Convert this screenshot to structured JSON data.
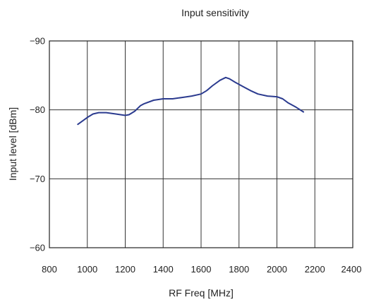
{
  "chart_data": {
    "type": "line",
    "title": "Input sensitivity",
    "xlabel": "RF Freq [MHz]",
    "ylabel": "Input level [dBm]",
    "xlim": [
      800,
      2400
    ],
    "ylim": [
      -60,
      -90
    ],
    "y_axis_inverted": true,
    "xticks": [
      800,
      1000,
      1200,
      1400,
      1600,
      1800,
      2000,
      2200,
      2400
    ],
    "xtick_labels": [
      "800",
      "1000",
      "1200",
      "1400",
      "1600",
      "1800",
      "2000",
      "2200",
      "2400"
    ],
    "yticks": [
      -90,
      -80,
      -70,
      -60
    ],
    "ytick_labels": [
      "−90",
      "−80",
      "−70",
      "−60"
    ],
    "grid": true,
    "series": [
      {
        "color": "#2b3b8f",
        "x": [
          950,
          970,
          1000,
          1030,
          1060,
          1100,
          1150,
          1200,
          1220,
          1250,
          1280,
          1300,
          1350,
          1400,
          1450,
          1500,
          1550,
          1600,
          1630,
          1660,
          1700,
          1730,
          1750,
          1780,
          1820,
          1860,
          1900,
          1950,
          2000,
          2030,
          2060,
          2100,
          2140
        ],
        "y": [
          -77.9,
          -78.3,
          -78.9,
          -79.4,
          -79.6,
          -79.6,
          -79.4,
          -79.2,
          -79.3,
          -79.8,
          -80.6,
          -80.9,
          -81.4,
          -81.6,
          -81.6,
          -81.8,
          -82.0,
          -82.3,
          -82.8,
          -83.5,
          -84.3,
          -84.7,
          -84.5,
          -84.0,
          -83.4,
          -82.8,
          -82.3,
          -82.0,
          -81.9,
          -81.6,
          -81.0,
          -80.4,
          -79.7
        ]
      }
    ]
  }
}
